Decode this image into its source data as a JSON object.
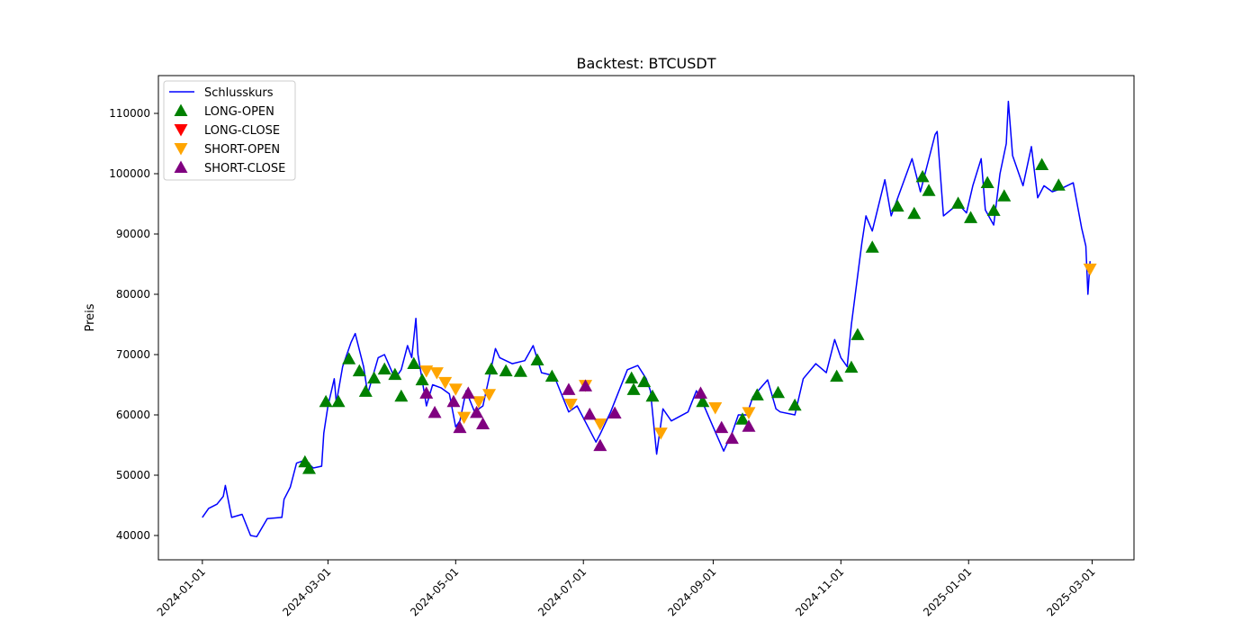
{
  "chart_data": {
    "type": "line",
    "title": "Backtest: BTCUSDT",
    "ylabel": "Preis",
    "xlim": [
      "2023-12-11",
      "2025-03-21"
    ],
    "ylim": [
      35970,
      116270
    ],
    "xticks": [
      "2024-01-01",
      "2024-03-01",
      "2024-05-01",
      "2024-07-01",
      "2024-09-01",
      "2024-11-01",
      "2025-01-01",
      "2025-03-01"
    ],
    "yticks": [
      40000,
      50000,
      60000,
      70000,
      80000,
      90000,
      100000,
      110000
    ],
    "legend": "upper left",
    "series": [
      {
        "name": "Schlusskurs",
        "color": "#0000ff",
        "marker": "line",
        "x": [
          "2024-01-01",
          "2024-01-04",
          "2024-01-08",
          "2024-01-11",
          "2024-01-12",
          "2024-01-15",
          "2024-01-20",
          "2024-01-24",
          "2024-01-27",
          "2024-02-01",
          "2024-02-08",
          "2024-02-09",
          "2024-02-12",
          "2024-02-15",
          "2024-02-19",
          "2024-02-23",
          "2024-02-27",
          "2024-02-28",
          "2024-03-01",
          "2024-03-04",
          "2024-03-05",
          "2024-03-08",
          "2024-03-12",
          "2024-03-14",
          "2024-03-18",
          "2024-03-20",
          "2024-03-25",
          "2024-03-28",
          "2024-04-02",
          "2024-04-05",
          "2024-04-08",
          "2024-04-10",
          "2024-04-12",
          "2024-04-13",
          "2024-04-17",
          "2024-04-20",
          "2024-04-24",
          "2024-04-28",
          "2024-05-01",
          "2024-05-03",
          "2024-05-06",
          "2024-05-10",
          "2024-05-14",
          "2024-05-20",
          "2024-05-22",
          "2024-05-28",
          "2024-06-03",
          "2024-06-07",
          "2024-06-11",
          "2024-06-17",
          "2024-06-24",
          "2024-06-28",
          "2024-07-04",
          "2024-07-07",
          "2024-07-09",
          "2024-07-14",
          "2024-07-18",
          "2024-07-22",
          "2024-07-27",
          "2024-07-31",
          "2024-08-02",
          "2024-08-05",
          "2024-08-08",
          "2024-08-12",
          "2024-08-20",
          "2024-08-24",
          "2024-08-27",
          "2024-09-01",
          "2024-09-06",
          "2024-09-10",
          "2024-09-13",
          "2024-09-17",
          "2024-09-20",
          "2024-09-27",
          "2024-10-01",
          "2024-10-03",
          "2024-10-10",
          "2024-10-14",
          "2024-10-20",
          "2024-10-25",
          "2024-10-29",
          "2024-11-01",
          "2024-11-04",
          "2024-11-06",
          "2024-11-11",
          "2024-11-13",
          "2024-11-16",
          "2024-11-22",
          "2024-11-25",
          "2024-12-05",
          "2024-12-09",
          "2024-12-16",
          "2024-12-17",
          "2024-12-20",
          "2024-12-27",
          "2024-12-31",
          "2025-01-03",
          "2025-01-07",
          "2025-01-09",
          "2025-01-13",
          "2025-01-16",
          "2025-01-19",
          "2025-01-20",
          "2025-01-22",
          "2025-01-27",
          "2025-01-31",
          "2025-02-03",
          "2025-02-06",
          "2025-02-10",
          "2025-02-14",
          "2025-02-20",
          "2025-02-24",
          "2025-02-26",
          "2025-02-27",
          "2025-02-28"
        ],
        "values": [
          43000,
          44500,
          45200,
          46500,
          48300,
          43000,
          43500,
          40000,
          39800,
          42800,
          43000,
          46000,
          48000,
          52000,
          52500,
          51200,
          51500,
          57000,
          61500,
          66000,
          62000,
          68000,
          72000,
          73500,
          68000,
          63500,
          69500,
          70000,
          66000,
          67500,
          71500,
          69500,
          76000,
          70000,
          61500,
          65000,
          64500,
          63500,
          58000,
          59000,
          64000,
          60500,
          61500,
          71000,
          69500,
          68500,
          69000,
          71500,
          67000,
          66500,
          60500,
          61500,
          57500,
          55500,
          56800,
          60500,
          64000,
          67500,
          68200,
          66000,
          64000,
          53500,
          61000,
          59000,
          60500,
          64000,
          62000,
          58000,
          54000,
          57000,
          60000,
          60000,
          63000,
          65800,
          61000,
          60500,
          60000,
          66000,
          68500,
          67000,
          72500,
          69500,
          68000,
          75000,
          88500,
          93000,
          90500,
          99000,
          93000,
          102500,
          97000,
          106500,
          107000,
          93000,
          95000,
          93500,
          98000,
          102500,
          94000,
          91500,
          100000,
          105000,
          112000,
          103000,
          98000,
          104500,
          96000,
          98000,
          97000,
          97500,
          98500,
          91000,
          88000,
          80000,
          85500
        ]
      },
      {
        "name": "LONG-OPEN",
        "color": "#008000",
        "marker": "^",
        "x": [
          "2024-02-19",
          "2024-02-21",
          "2024-02-29",
          "2024-03-06",
          "2024-03-11",
          "2024-03-16",
          "2024-03-19",
          "2024-03-23",
          "2024-03-28",
          "2024-04-02",
          "2024-04-05",
          "2024-04-11",
          "2024-04-15",
          "2024-05-18",
          "2024-05-25",
          "2024-06-01",
          "2024-06-09",
          "2024-06-16",
          "2024-07-24",
          "2024-07-25",
          "2024-07-30",
          "2024-08-03",
          "2024-08-27",
          "2024-09-15",
          "2024-09-22",
          "2024-10-02",
          "2024-10-10",
          "2024-10-30",
          "2024-11-06",
          "2024-11-09",
          "2024-11-16",
          "2024-11-28",
          "2024-12-06",
          "2024-12-10",
          "2024-12-13",
          "2024-12-27",
          "2025-01-02",
          "2025-01-10",
          "2025-01-13",
          "2025-01-18",
          "2025-02-05",
          "2025-02-13"
        ],
        "values": [
          52200,
          51100,
          62200,
          62200,
          69300,
          67300,
          63900,
          66100,
          67600,
          66700,
          63100,
          68500,
          65800,
          67600,
          67300,
          67200,
          69100,
          66400,
          66100,
          64200,
          65500,
          63100,
          62200,
          59300,
          63300,
          63700,
          61600,
          66400,
          67900,
          73300,
          87800,
          94600,
          93400,
          99500,
          97200,
          95100,
          92700,
          98500,
          93900,
          96300,
          101500,
          98100
        ]
      },
      {
        "name": "LONG-CLOSE",
        "color": "#ff0000",
        "marker": "v",
        "x": [],
        "values": []
      },
      {
        "name": "SHORT-OPEN",
        "color": "#ffa500",
        "marker": "v",
        "x": [
          "2024-04-17",
          "2024-04-22",
          "2024-04-26",
          "2024-05-01",
          "2024-05-05",
          "2024-05-12",
          "2024-05-17",
          "2024-06-25",
          "2024-07-02",
          "2024-07-09",
          "2024-08-07",
          "2024-09-02",
          "2024-09-18",
          "2025-02-28"
        ],
        "values": [
          67300,
          67000,
          65400,
          64300,
          59600,
          62200,
          63400,
          61800,
          64900,
          58500,
          57000,
          61200,
          60400,
          84200
        ]
      },
      {
        "name": "SHORT-CLOSE",
        "color": "#800080",
        "marker": "^",
        "x": [
          "2024-04-17",
          "2024-04-21",
          "2024-04-30",
          "2024-05-03",
          "2024-05-07",
          "2024-05-11",
          "2024-05-14",
          "2024-06-24",
          "2024-07-02",
          "2024-07-04",
          "2024-07-09",
          "2024-07-16",
          "2024-08-26",
          "2024-09-05",
          "2024-09-10",
          "2024-09-18"
        ],
        "values": [
          63600,
          60400,
          62200,
          57900,
          63600,
          60400,
          58500,
          64200,
          64800,
          60100,
          54900,
          60300,
          63600,
          57900,
          56100,
          58100
        ]
      }
    ]
  }
}
